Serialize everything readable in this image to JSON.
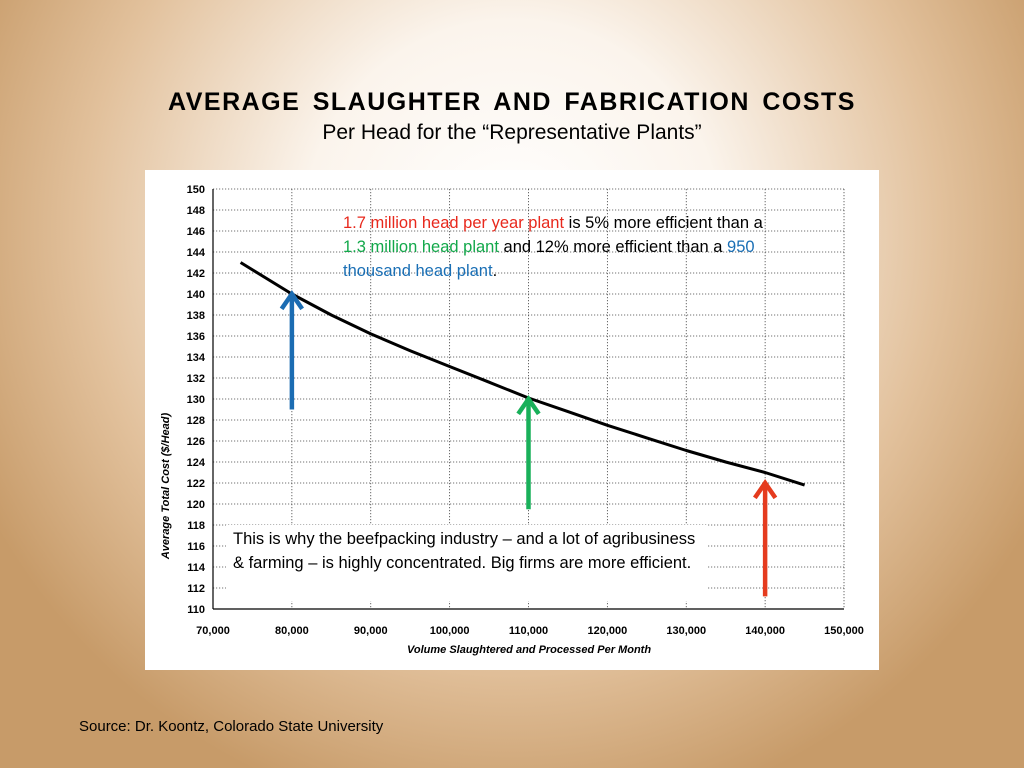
{
  "slide": {
    "title": "AVERAGE  SLAUGHTER  AND  FABRICATION  COSTS",
    "subtitle": "Per Head for the “Representative Plants”",
    "source": "Source: Dr. Koontz, Colorado State University"
  },
  "note1": {
    "a_red": "1.7 million head per year plant",
    "b": " is 5% more efficient than a ",
    "c_green": "1.3 million head plant",
    "d": " and 12% more efficient than a ",
    "e_blue": "950 thousand head plant",
    "f": "."
  },
  "note2": {
    "text": "This is why the beefpacking industry – and a lot of agribusiness & farming – is highly concentrated.  Big firms are more efficient."
  },
  "colors": {
    "red": "#e8281c",
    "green": "#12a84a",
    "blue": "#1a6fb5",
    "arrow_red": "#e53b1e",
    "arrow_green": "#19b05a",
    "arrow_blue": "#1b6cb2"
  },
  "chart_data": {
    "type": "line",
    "xlabel": "Volume Slaughtered and Processed Per Month",
    "ylabel": "Average Total Cost ($/Head)",
    "xlim": [
      70000,
      150000
    ],
    "ylim": [
      110,
      150
    ],
    "x_ticks": [
      "70,000",
      "80,000",
      "90,000",
      "100,000",
      "110,000",
      "120,000",
      "130,000",
      "140,000",
      "150,000"
    ],
    "y_ticks": [
      "110",
      "112",
      "114",
      "116",
      "118",
      "120",
      "122",
      "124",
      "126",
      "128",
      "130",
      "132",
      "134",
      "136",
      "138",
      "140",
      "142",
      "144",
      "146",
      "148",
      "150"
    ],
    "grid": true,
    "series": [
      {
        "x": [
          73500,
          80000,
          85000,
          90000,
          95000,
          100000,
          105000,
          110000,
          115000,
          120000,
          125000,
          130000,
          135000,
          140000,
          145000
        ],
        "y": [
          143.0,
          140.0,
          138.0,
          136.2,
          134.6,
          133.1,
          131.6,
          130.1,
          128.8,
          127.5,
          126.3,
          125.1,
          124.0,
          123.0,
          121.8
        ]
      }
    ],
    "arrows": [
      {
        "x": 80000,
        "y_from": 129,
        "y_to": 140,
        "color": "#1b6cb2"
      },
      {
        "x": 110000,
        "y_from": 119.5,
        "y_to": 130,
        "color": "#19b05a"
      },
      {
        "x": 140000,
        "y_from": 111.2,
        "y_to": 122,
        "color": "#e53b1e"
      }
    ]
  }
}
